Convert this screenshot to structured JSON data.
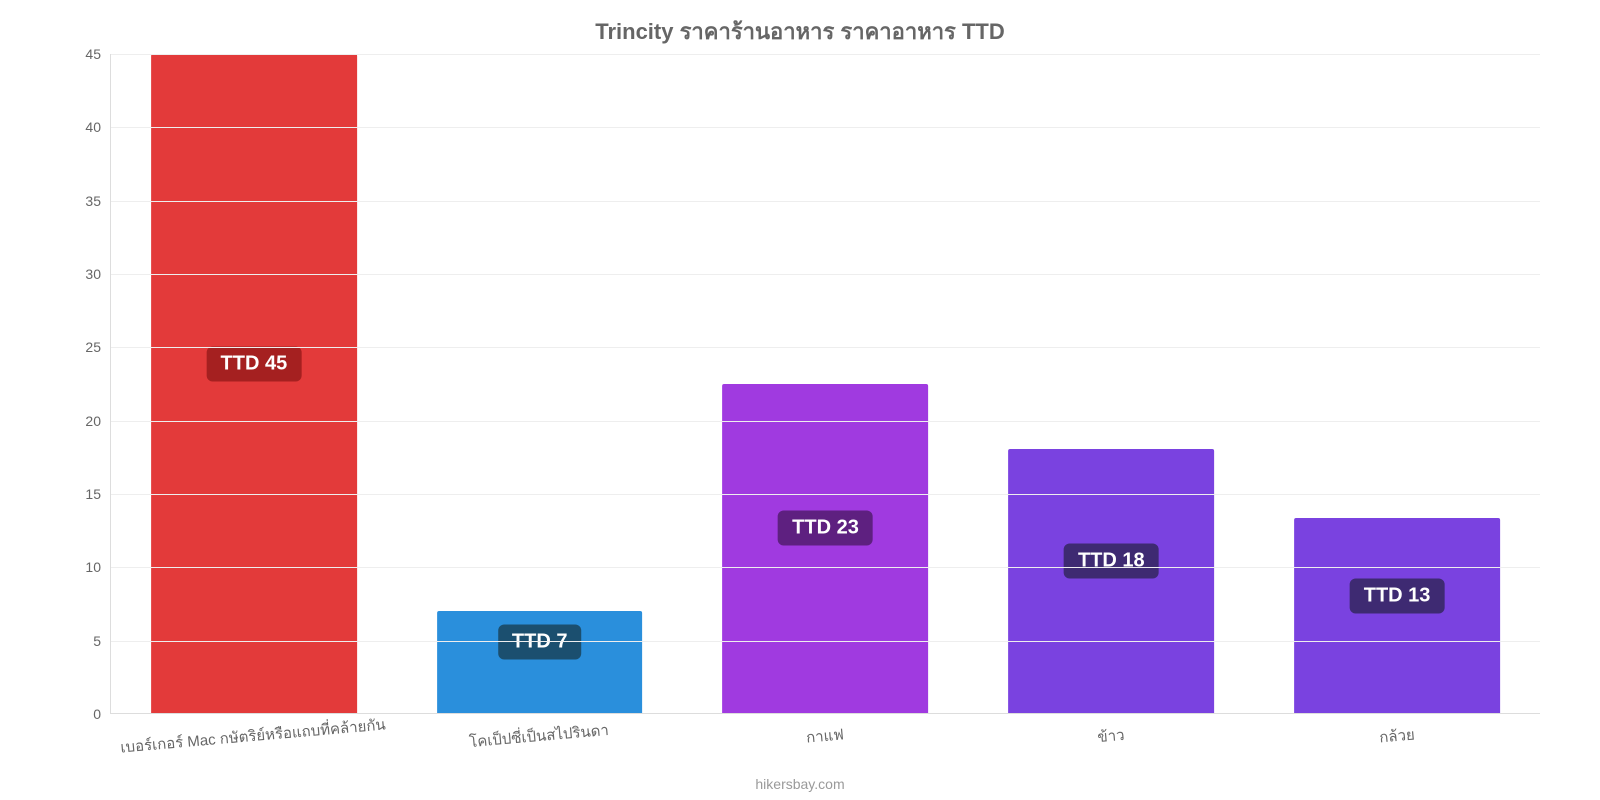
{
  "chart": {
    "type": "bar",
    "title": "Trincity ราคาร้านอาหาร ราคาอาหาร TTD",
    "title_fontsize": 22,
    "title_color": "#666666",
    "background_color": "#ffffff",
    "grid_color": "#eeeeee",
    "axis_color": "#dddddd",
    "tick_color": "#666666",
    "tick_fontsize": 14,
    "xlabel_fontsize": 15,
    "xlabel_rotation_deg": -5,
    "ylim": [
      0,
      45
    ],
    "ytick_step": 5,
    "yticks": [
      0,
      5,
      10,
      15,
      20,
      25,
      30,
      35,
      40,
      45
    ],
    "bar_width_pct": 72,
    "categories": [
      "เบอร์เกอร์ Mac กษัตริย์หรือแถบที่คล้ายกัน",
      "โคเป็ปซี่เป็นสไปรินดา",
      "กาแฟ",
      "ข้าว",
      "กล้วย"
    ],
    "values": [
      45,
      7,
      22.5,
      18,
      13.3
    ],
    "value_labels": [
      "TTD 45",
      "TTD 7",
      "TTD 23",
      "TTD 18",
      "TTD 13"
    ],
    "bar_colors": [
      "#e33a3a",
      "#2a8fdc",
      "#a03ae0",
      "#7a42e0",
      "#7a42e0"
    ],
    "badge_bg_colors": [
      "#a52020",
      "#1b4f6f",
      "#5e2080",
      "#3e2a72",
      "#3e2a72"
    ],
    "badge_text_color": "#ffffff",
    "badge_fontsize": 20,
    "attribution": "hikersbay.com",
    "attribution_color": "#9a9a9a",
    "attribution_fontsize": 14
  }
}
